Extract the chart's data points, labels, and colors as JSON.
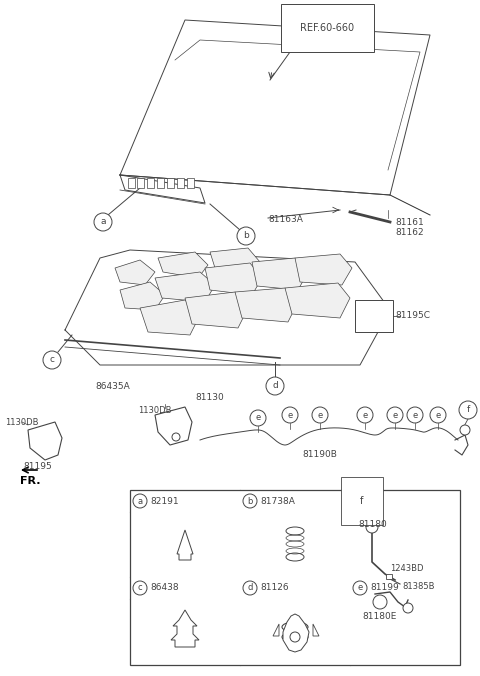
{
  "bg_color": "#ffffff",
  "lc": "#444444",
  "lw": 0.7,
  "fig_w": 4.8,
  "fig_h": 6.76,
  "dpi": 100,
  "labels": {
    "ref": "REF.60-660",
    "81163A": "81163A",
    "81161": "81161",
    "81162": "81162",
    "81195C": "81195C",
    "86435A": "86435A",
    "81130": "81130",
    "1130DB": "1130DB",
    "81195": "81195",
    "FR": "FR.",
    "81190B": "81190B",
    "a_code": "82191",
    "b_code": "81738A",
    "c_code": "86438",
    "d_code": "81126",
    "e_code": "81199",
    "f_label": "f",
    "81180": "81180",
    "1243BD": "1243BD",
    "81385B": "81385B",
    "81180E": "81180E"
  }
}
